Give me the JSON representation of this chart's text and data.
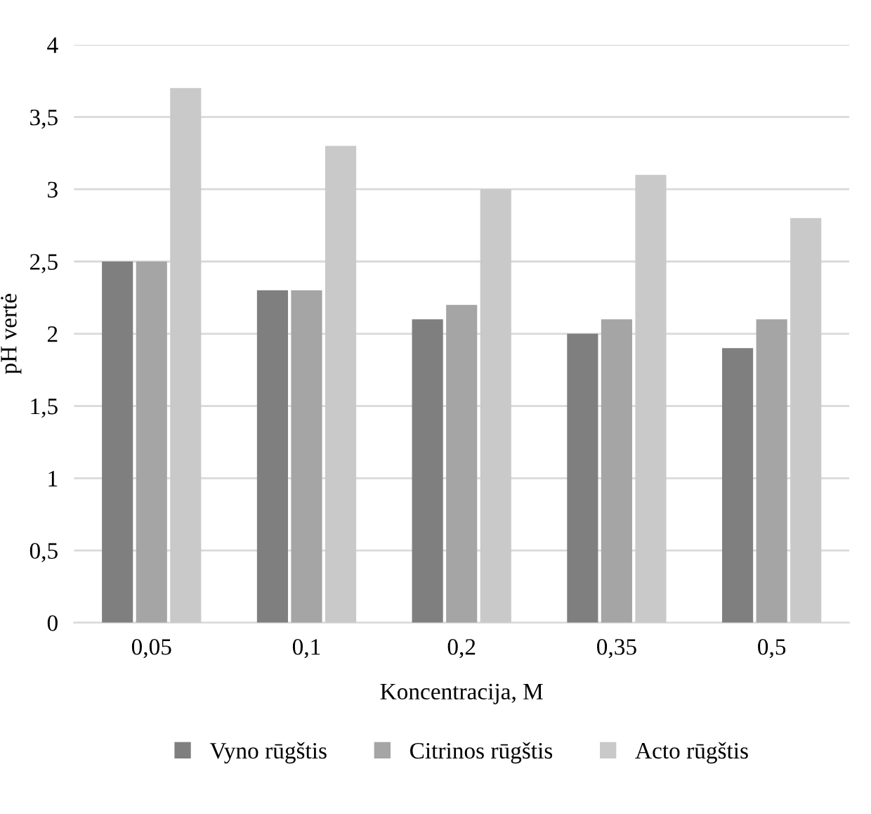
{
  "chart_data": {
    "type": "bar",
    "xlabel": "Koncentracija, M",
    "ylabel": "pH vertė",
    "categories": [
      "0,05",
      "0,1",
      "0,2",
      "0,35",
      "0,5"
    ],
    "series": [
      {
        "name": "Vyno rūgštis",
        "color": "#7f7f7f",
        "values": [
          2.5,
          2.3,
          2.1,
          2.0,
          1.9
        ]
      },
      {
        "name": "Citrinos rūgštis",
        "color": "#a5a5a5",
        "values": [
          2.5,
          2.3,
          2.2,
          2.1,
          2.1
        ]
      },
      {
        "name": "Acto rūgštis",
        "color": "#c9c9c9",
        "values": [
          3.7,
          3.3,
          3.0,
          3.1,
          2.8
        ]
      }
    ],
    "ylim": [
      0,
      4
    ],
    "yticks": [
      0,
      {
        "value": 0.5,
        "label": "0,5"
      },
      1,
      {
        "value": 1.5,
        "label": "1,5"
      },
      2,
      {
        "value": 2.5,
        "label": "2,5"
      },
      3,
      {
        "value": 3.5,
        "label": "3,5"
      },
      4
    ],
    "grid": "y",
    "legend": "bottom"
  }
}
